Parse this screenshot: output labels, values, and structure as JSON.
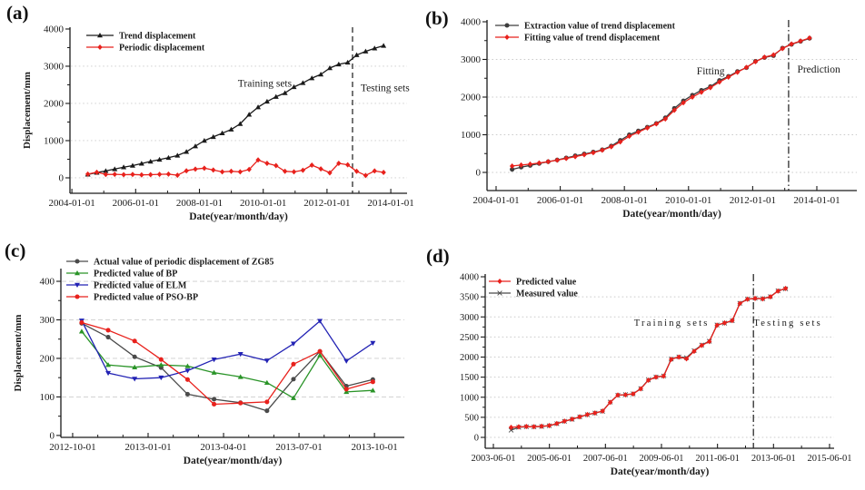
{
  "chart_data": [
    {
      "id": "a",
      "tag": "(a)",
      "type": "line",
      "xlabel": "Date(year/month/day)",
      "ylabel": "Displacement/mm",
      "x_range": [
        2003.94,
        2014.51
      ],
      "y_range": [
        -415,
        4048
      ],
      "x_ticks": [
        {
          "v": 2004,
          "label": "2004-01-01"
        },
        {
          "v": 2006,
          "label": "2006-01-01"
        },
        {
          "v": 2008,
          "label": "2008-01-01"
        },
        {
          "v": 2010,
          "label": "2010-01-01"
        },
        {
          "v": 2012,
          "label": "2012-01-01"
        },
        {
          "v": 2014,
          "label": "2014-01-01"
        }
      ],
      "y_ticks": [
        {
          "v": 0,
          "label": "0"
        },
        {
          "v": 1000,
          "label": "1000"
        },
        {
          "v": 2000,
          "label": "2000"
        },
        {
          "v": 3000,
          "label": "3000"
        },
        {
          "v": 4000,
          "label": "4000"
        }
      ],
      "grid_y": [
        0,
        1000,
        2000,
        3000
      ],
      "vline": {
        "x": 2012.8,
        "style": "dashed"
      },
      "annotations": [
        {
          "text": "Training sets",
          "x": 2010.05,
          "y": 2450,
          "spaced": false
        },
        {
          "text": "Testing sets",
          "x": 2013.82,
          "y": 2330,
          "spaced": false
        }
      ],
      "series": [
        {
          "name": "Trend displacement",
          "color": "#1a1a1a",
          "marker": "triangle-up",
          "x_start": 2004.5,
          "x_step": 0.281,
          "y": [
            90,
            140,
            185,
            235,
            285,
            330,
            385,
            440,
            490,
            540,
            600,
            700,
            850,
            1000,
            1100,
            1200,
            1300,
            1450,
            1700,
            1900,
            2050,
            2180,
            2280,
            2440,
            2550,
            2680,
            2780,
            2950,
            3050,
            3100,
            3300,
            3400,
            3480,
            3550
          ]
        },
        {
          "name": "Periodic displacement",
          "color": "#e8211c",
          "marker": "diamond",
          "x_start": 2004.5,
          "x_step": 0.281,
          "y": [
            100,
            150,
            90,
            95,
            85,
            90,
            80,
            85,
            95,
            100,
            70,
            190,
            235,
            260,
            210,
            160,
            175,
            160,
            225,
            480,
            390,
            330,
            175,
            160,
            205,
            340,
            240,
            135,
            390,
            350,
            175,
            65,
            185,
            145
          ]
        }
      ]
    },
    {
      "id": "b",
      "tag": "(b)",
      "type": "line",
      "xlabel": "Date(year/month/day)",
      "ylabel": "",
      "x_range": [
        2003.717,
        2015.247
      ],
      "y_range": [
        -482,
        4048
      ],
      "x_ticks": [
        {
          "v": 2004,
          "label": "2004-01-01"
        },
        {
          "v": 2006,
          "label": "2006-01-01"
        },
        {
          "v": 2008,
          "label": "2008-01-01"
        },
        {
          "v": 2010,
          "label": "2010-01-01"
        },
        {
          "v": 2012,
          "label": "2012-01-01"
        },
        {
          "v": 2014,
          "label": "2014-01-01"
        }
      ],
      "y_ticks": [
        {
          "v": 0,
          "label": "0"
        },
        {
          "v": 1000,
          "label": "1000"
        },
        {
          "v": 2000,
          "label": "2000"
        },
        {
          "v": 3000,
          "label": "3000"
        },
        {
          "v": 4000,
          "label": "4000"
        }
      ],
      "grid_y": [
        0,
        1000,
        2000,
        3000
      ],
      "vline": {
        "x": 2013.12,
        "style": "dashdot"
      },
      "annotations": [
        {
          "text": "Fitting",
          "x": 2010.69,
          "y": 2600,
          "spaced": false
        },
        {
          "text": "Prediction",
          "x": 2014.06,
          "y": 2650,
          "spaced": false
        }
      ],
      "series": [
        {
          "name": "Extraction value of trend displacement",
          "color": "#3d3d3d",
          "marker": "circle",
          "x_start": 2004.5,
          "x_step": 0.281,
          "y": [
            80,
            140,
            185,
            235,
            285,
            330,
            385,
            440,
            490,
            540,
            600,
            700,
            850,
            1000,
            1100,
            1200,
            1300,
            1450,
            1700,
            1900,
            2050,
            2180,
            2280,
            2440,
            2550,
            2680,
            2780,
            2950,
            3050,
            3100,
            3300,
            3400,
            3480,
            3560
          ]
        },
        {
          "name": "Fitting value of trend displacement",
          "color": "#e8211c",
          "marker": "diamond",
          "x_start": 2004.5,
          "x_step": 0.281,
          "y": [
            170,
            195,
            220,
            250,
            285,
            325,
            370,
            420,
            470,
            525,
            590,
            680,
            810,
            960,
            1070,
            1180,
            1290,
            1420,
            1650,
            1850,
            2000,
            2130,
            2250,
            2400,
            2530,
            2660,
            2790,
            2940,
            3060,
            3120,
            3290,
            3410,
            3490,
            3570
          ]
        }
      ]
    },
    {
      "id": "c",
      "tag": "(c)",
      "type": "line",
      "xlabel": "Date(year/month/day)",
      "ylabel": "Displacement/mm",
      "x_range": [
        2012.711,
        2013.849
      ],
      "y_range": [
        -5,
        433
      ],
      "x_ticks": [
        {
          "v": 2012.75,
          "label": "2012-10-01"
        },
        {
          "v": 2013.0,
          "label": "2013-01-01"
        },
        {
          "v": 2013.25,
          "label": "2013-04-01"
        },
        {
          "v": 2013.5,
          "label": "2013-07-01"
        },
        {
          "v": 2013.75,
          "label": "2013-10-01"
        }
      ],
      "y_ticks": [
        {
          "v": 0,
          "label": "0"
        },
        {
          "v": 100,
          "label": "100"
        },
        {
          "v": 200,
          "label": "200"
        },
        {
          "v": 300,
          "label": "300"
        },
        {
          "v": 400,
          "label": "400"
        }
      ],
      "grid_y": [
        100,
        200,
        300,
        400
      ],
      "vline": null,
      "annotations": [],
      "series": [
        {
          "name": "Actual value of periodic displacement of ZG85",
          "color": "#4a4a4a",
          "marker": "circle",
          "x_start": 2012.78,
          "x_step": 0.0877,
          "y": [
            291,
            255,
            204,
            176,
            107,
            94,
            85,
            64,
            146,
            218,
            128,
            145
          ]
        },
        {
          "name": "Predicted value of BP",
          "color": "#2a9428",
          "marker": "triangle-up",
          "x_start": 2012.78,
          "x_step": 0.0877,
          "y": [
            270,
            183,
            177,
            183,
            180,
            163,
            152,
            137,
            97,
            208,
            113,
            117
          ]
        },
        {
          "name": "Predicted value of ELM",
          "color": "#2222b4",
          "marker": "triangle-down",
          "x_start": 2012.78,
          "x_step": 0.0877,
          "y": [
            298,
            162,
            147,
            150,
            168,
            197,
            211,
            194,
            238,
            297,
            193,
            240
          ]
        },
        {
          "name": "Predicted value of PSO-BP",
          "color": "#e8211c",
          "marker": "circle",
          "x_start": 2012.78,
          "x_step": 0.0877,
          "y": [
            293,
            273,
            245,
            197,
            145,
            81,
            84,
            87,
            185,
            218,
            120,
            139
          ]
        }
      ]
    },
    {
      "id": "d",
      "tag": "(d)",
      "type": "line",
      "xlabel": "Date(year/month/day)",
      "ylabel": "",
      "x_range": [
        2003.125,
        2015.58
      ],
      "y_range": [
        -271,
        4068
      ],
      "x_ticks": [
        {
          "v": 2003.417,
          "label": "2003-06-01"
        },
        {
          "v": 2005.417,
          "label": "2005-06-01"
        },
        {
          "v": 2007.417,
          "label": "2007-06-01"
        },
        {
          "v": 2009.417,
          "label": "2009-06-01"
        },
        {
          "v": 2011.417,
          "label": "2011-06-01"
        },
        {
          "v": 2013.417,
          "label": "2013-06-01"
        },
        {
          "v": 2015.417,
          "label": "2015-06-01"
        }
      ],
      "y_ticks": [
        {
          "v": 0,
          "label": "0"
        },
        {
          "v": 500,
          "label": "500"
        },
        {
          "v": 1000,
          "label": "1000"
        },
        {
          "v": 1500,
          "label": "1500"
        },
        {
          "v": 2000,
          "label": "2000"
        },
        {
          "v": 2500,
          "label": "2500"
        },
        {
          "v": 3000,
          "label": "3000"
        },
        {
          "v": 3500,
          "label": "3500"
        },
        {
          "v": 4000,
          "label": "4000"
        }
      ],
      "grid_y": [
        0,
        500,
        1000,
        1500,
        2000,
        2500,
        3000,
        3500
      ],
      "vline": {
        "x": 2012.7,
        "style": "dashdot"
      },
      "annotations": [
        {
          "text": "Training sets",
          "x": 2009.78,
          "y": 2780,
          "spaced": true
        },
        {
          "text": "Testing sets",
          "x": 2013.93,
          "y": 2780,
          "spaced": true
        }
      ],
      "series": [
        {
          "name": "Predicted value",
          "color": "#e8211c",
          "marker": "diamond",
          "x_start": 2004.05,
          "x_step": 0.2722,
          "y": [
            250,
            262,
            270,
            266,
            276,
            295,
            345,
            405,
            455,
            512,
            568,
            608,
            655,
            872,
            1055,
            1060,
            1082,
            1210,
            1425,
            1500,
            1525,
            1945,
            2000,
            1958,
            2145,
            2290,
            2388,
            2795,
            2850,
            2910,
            3335,
            3440,
            3460,
            3450,
            3500,
            3645,
            3710
          ]
        },
        {
          "name": "Measured value",
          "color": "#4a4a4a",
          "marker": "x",
          "x_start": 2004.05,
          "x_step": 0.2722,
          "y": [
            180,
            250,
            265,
            262,
            272,
            290,
            340,
            400,
            450,
            510,
            565,
            605,
            650,
            880,
            1050,
            1065,
            1085,
            1215,
            1430,
            1505,
            1530,
            1950,
            2005,
            1985,
            2160,
            2300,
            2395,
            2800,
            2845,
            2905,
            3340,
            3445,
            3465,
            3455,
            3505,
            3650,
            3700
          ]
        }
      ]
    }
  ]
}
